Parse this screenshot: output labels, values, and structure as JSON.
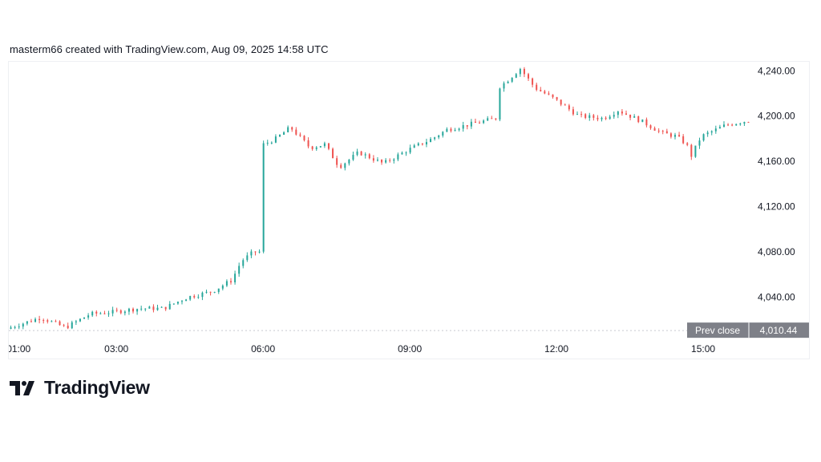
{
  "caption": "masterm66 created with TradingView.com, Aug 09, 2025 14:58 UTC",
  "brand": {
    "name": "TradingView",
    "logo_icon": "tradingview-logo-icon"
  },
  "colors": {
    "up": "#26a69a",
    "down": "#ef5350",
    "text": "#131722",
    "badge": "#7e8088",
    "dotted": "#c8cad0"
  },
  "chart_data": {
    "type": "candlestick",
    "title": "",
    "xlabel": "",
    "ylabel": "",
    "x_ticks": [
      "01:00",
      "03:00",
      "06:00",
      "09:00",
      "12:00",
      "15:00"
    ],
    "x_range_hours": [
      0.8,
      15.95
    ],
    "y_ticks": [
      4040,
      4080,
      4120,
      4160,
      4200,
      4240
    ],
    "y_tick_labels": [
      "4,040.00",
      "4,080.00",
      "4,120.00",
      "4,160.00",
      "4,200.00",
      "4,240.00"
    ],
    "ylim": [
      4007,
      4248
    ],
    "prev_close": {
      "label": "Prev close",
      "value": 4010.44,
      "value_label": "4,010.44"
    },
    "grid": false,
    "price_path": {
      "hours": [
        0.8,
        1.0,
        1.5,
        2.0,
        2.5,
        3.0,
        3.5,
        4.0,
        4.5,
        5.0,
        5.4,
        5.6,
        5.85,
        6.0,
        6.05,
        6.3,
        6.6,
        7.0,
        7.3,
        7.6,
        8.0,
        8.5,
        9.0,
        9.5,
        9.8,
        10.2,
        10.5,
        10.8,
        10.85,
        11.0,
        11.3,
        11.6,
        12.0,
        12.5,
        13.0,
        13.3,
        13.8,
        14.2,
        14.5,
        14.7,
        14.8,
        15.0,
        15.5,
        15.95
      ],
      "prices": [
        4012,
        4015,
        4022,
        4013,
        4025,
        4027,
        4030,
        4030,
        4040,
        4045,
        4055,
        4072,
        4080,
        4080,
        4175,
        4180,
        4190,
        4172,
        4175,
        4155,
        4168,
        4158,
        4170,
        4180,
        4188,
        4192,
        4195,
        4198,
        4225,
        4230,
        4242,
        4225,
        4215,
        4200,
        4198,
        4205,
        4195,
        4185,
        4182,
        4175,
        4165,
        4182,
        4192,
        4196
      ]
    }
  }
}
